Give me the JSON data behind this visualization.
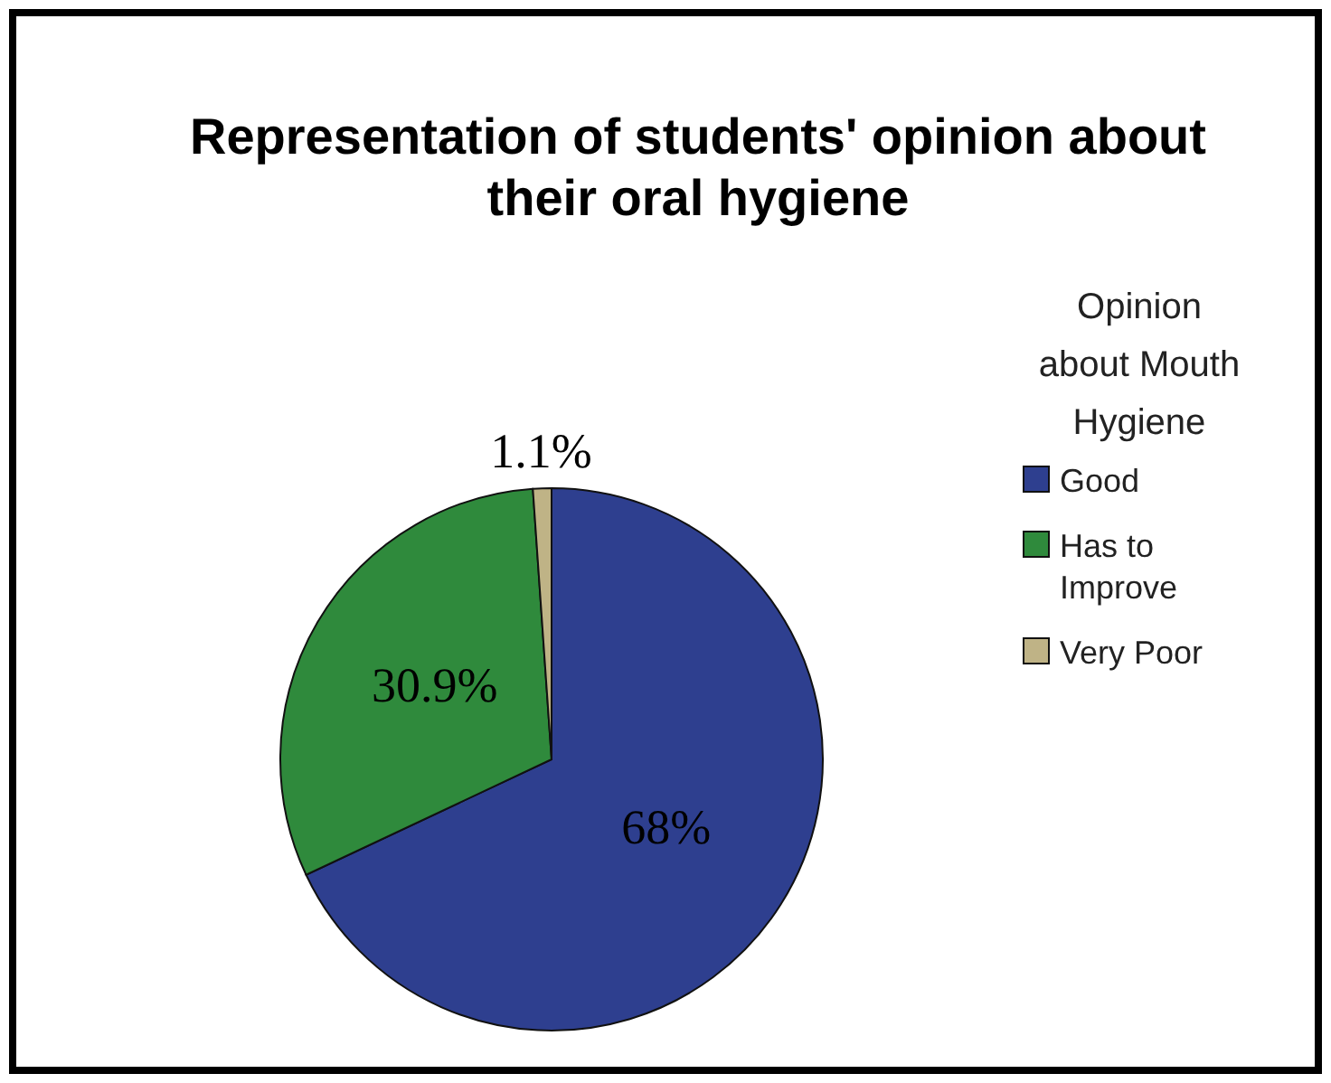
{
  "chart_data": {
    "type": "pie",
    "title": "Representation of students' opinion about their oral hygiene",
    "legend_title": "Opinion about Mouth Hygiene",
    "categories": [
      "Good",
      "Has to Improve",
      "Very Poor"
    ],
    "values": [
      68,
      30.9,
      1.1
    ],
    "value_labels": [
      "68%",
      "30.9%",
      "1.1%"
    ],
    "colors": [
      "#2e3f8f",
      "#2f8a3c",
      "#bfb386"
    ],
    "legend": "right"
  }
}
